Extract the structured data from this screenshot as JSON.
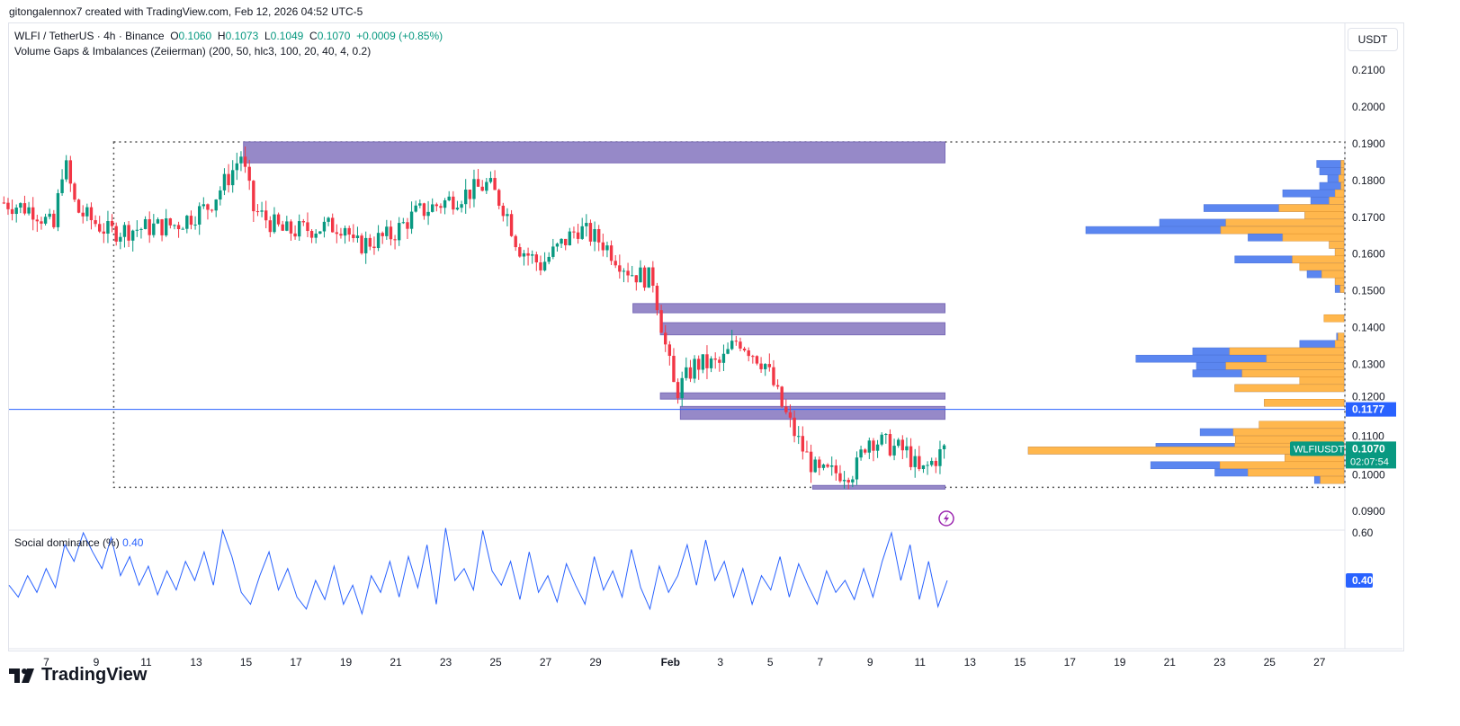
{
  "credit": "gitongalennox7 created with TradingView.com, Feb 12, 2026 04:52 UTC-5",
  "symbol": {
    "name": "WLFI / TetherUS · 4h · Binance",
    "o_label": "O",
    "o": "0.1060",
    "h_label": "H",
    "h": "0.1073",
    "l_label": "L",
    "l": "0.1049",
    "c_label": "C",
    "c": "0.1070",
    "change": "+0.0009 (+0.85%)"
  },
  "indicator": "Volume Gaps & Imbalances (Zeiierman) (200, 50, hlc3, 100, 20, 40, 4, 0.2)",
  "currency_button": "USDT",
  "social": {
    "label": "Social dominance (%)",
    "value": "0.40",
    "axis_labels": [
      "0.60",
      "0.40"
    ]
  },
  "brand": "TradingView",
  "colors": {
    "up": "#089981",
    "down": "#f23645",
    "zone": "#9689c8",
    "vp_blue": "#5b86f0",
    "vp_orange": "#ffb74d",
    "hline": "#2962ff"
  },
  "chart_data": {
    "type": "candlestick",
    "title": "WLFI / TetherUS 4h",
    "ylim": [
      0.085,
      0.215
    ],
    "y_ticks": [
      "0.2100",
      "0.2000",
      "0.1900",
      "0.1800",
      "0.1700",
      "0.1600",
      "0.1500",
      "0.1400",
      "0.1300",
      "0.1200",
      "0.1100",
      "0.1000",
      "0.0900"
    ],
    "x_ticks": [
      {
        "t": 7,
        "label": "7"
      },
      {
        "t": 9,
        "label": "9"
      },
      {
        "t": 11,
        "label": "11"
      },
      {
        "t": 13,
        "label": "13"
      },
      {
        "t": 15,
        "label": "15"
      },
      {
        "t": 17,
        "label": "17"
      },
      {
        "t": 19,
        "label": "19"
      },
      {
        "t": 21,
        "label": "21"
      },
      {
        "t": 23,
        "label": "23"
      },
      {
        "t": 25,
        "label": "25"
      },
      {
        "t": 27,
        "label": "27"
      },
      {
        "t": 29,
        "label": "29"
      },
      {
        "t": 32,
        "label": "Feb"
      },
      {
        "t": 34,
        "label": "3"
      },
      {
        "t": 36,
        "label": "5"
      },
      {
        "t": 38,
        "label": "7"
      },
      {
        "t": 40,
        "label": "9"
      },
      {
        "t": 42,
        "label": "11"
      },
      {
        "t": 44,
        "label": "13"
      },
      {
        "t": 46,
        "label": "15"
      },
      {
        "t": 48,
        "label": "17"
      },
      {
        "t": 50,
        "label": "19"
      },
      {
        "t": 52,
        "label": "21"
      },
      {
        "t": 54,
        "label": "23"
      },
      {
        "t": 56,
        "label": "25"
      },
      {
        "t": 58,
        "label": "27"
      }
    ],
    "price_path": [
      [
        5.3,
        0.174
      ],
      [
        6.5,
        0.172
      ],
      [
        7.3,
        0.167
      ],
      [
        7.7,
        0.186
      ],
      [
        8.2,
        0.172
      ],
      [
        9.5,
        0.166
      ],
      [
        12.2,
        0.168
      ],
      [
        13.5,
        0.173
      ],
      [
        14.4,
        0.182
      ],
      [
        14.8,
        0.187
      ],
      [
        15.3,
        0.172
      ],
      [
        16.5,
        0.166
      ],
      [
        19,
        0.168
      ],
      [
        19.3,
        0.162
      ],
      [
        20.8,
        0.165
      ],
      [
        21.8,
        0.171
      ],
      [
        22.9,
        0.174
      ],
      [
        24.7,
        0.179
      ],
      [
        25.4,
        0.172
      ],
      [
        25.9,
        0.162
      ],
      [
        26.8,
        0.157
      ],
      [
        28.3,
        0.167
      ],
      [
        29.3,
        0.163
      ],
      [
        30.4,
        0.155
      ],
      [
        31.3,
        0.153
      ],
      [
        31.8,
        0.135
      ],
      [
        32.2,
        0.122
      ],
      [
        33,
        0.13
      ],
      [
        34,
        0.13
      ],
      [
        34.7,
        0.137
      ],
      [
        35.8,
        0.13
      ],
      [
        36.5,
        0.118
      ],
      [
        37.2,
        0.108
      ],
      [
        37.9,
        0.1
      ],
      [
        39.4,
        0.101
      ],
      [
        39.9,
        0.11
      ],
      [
        41.5,
        0.106
      ],
      [
        42,
        0.1
      ],
      [
        43,
        0.107
      ]
    ],
    "last_price": "0.1070",
    "countdown": "02:07:54",
    "last_label": "WLFIUSDT",
    "hline": {
      "price": 0.1177,
      "label": "0.1177"
    },
    "zones": [
      [
        0.1905,
        0.1848,
        14.9
      ],
      [
        0.1465,
        0.144,
        30.5
      ],
      [
        0.1413,
        0.138,
        31.6
      ],
      [
        0.1222,
        0.1205,
        31.6
      ],
      [
        0.1185,
        0.115,
        32.4
      ],
      [
        0.097,
        0.096,
        37.7
      ]
    ],
    "zone_end": 43,
    "range_box": {
      "top": 0.1905,
      "bottom": 0.0965,
      "start": 9.7
    },
    "volume_profile": [
      [
        0.1845,
        37,
        4
      ],
      [
        0.1825,
        33,
        4
      ],
      [
        0.1805,
        22,
        7
      ],
      [
        0.1785,
        33,
        4
      ],
      [
        0.1765,
        83,
        12
      ],
      [
        0.1745,
        45,
        20
      ],
      [
        0.1725,
        190,
        88
      ],
      [
        0.1705,
        53,
        53
      ],
      [
        0.1685,
        250,
        160
      ],
      [
        0.1665,
        350,
        167
      ],
      [
        0.1645,
        130,
        83
      ],
      [
        0.1625,
        20,
        20
      ],
      [
        0.1605,
        12,
        12
      ],
      [
        0.1585,
        148,
        70
      ],
      [
        0.1565,
        60,
        60
      ],
      [
        0.1545,
        50,
        30
      ],
      [
        0.1525,
        12,
        12
      ],
      [
        0.1505,
        12,
        5
      ],
      [
        0.1425,
        27,
        27
      ],
      [
        0.1375,
        10,
        8
      ],
      [
        0.1355,
        60,
        12
      ],
      [
        0.1335,
        205,
        155
      ],
      [
        0.1315,
        282,
        105
      ],
      [
        0.1295,
        200,
        160
      ],
      [
        0.1275,
        205,
        138
      ],
      [
        0.1255,
        60,
        60
      ],
      [
        0.1235,
        148,
        148
      ],
      [
        0.1195,
        108,
        108
      ],
      [
        0.1135,
        115,
        115
      ],
      [
        0.1115,
        195,
        150
      ],
      [
        0.1095,
        147,
        147
      ],
      [
        0.1075,
        255,
        148
      ],
      [
        0.1065,
        428,
        428
      ],
      [
        0.1045,
        80,
        80
      ],
      [
        0.1025,
        262,
        168
      ],
      [
        0.1005,
        175,
        130
      ],
      [
        0.0985,
        40,
        32
      ]
    ],
    "social_dominance": [
      0.38,
      0.33,
      0.42,
      0.35,
      0.45,
      0.37,
      0.55,
      0.48,
      0.6,
      0.52,
      0.45,
      0.58,
      0.42,
      0.5,
      0.38,
      0.46,
      0.34,
      0.44,
      0.36,
      0.48,
      0.4,
      0.52,
      0.38,
      0.61,
      0.5,
      0.35,
      0.3,
      0.42,
      0.52,
      0.36,
      0.45,
      0.33,
      0.28,
      0.4,
      0.32,
      0.46,
      0.3,
      0.38,
      0.26,
      0.42,
      0.35,
      0.48,
      0.33,
      0.5,
      0.37,
      0.55,
      0.3,
      0.62,
      0.4,
      0.45,
      0.36,
      0.61,
      0.44,
      0.38,
      0.48,
      0.32,
      0.52,
      0.35,
      0.42,
      0.31,
      0.47,
      0.38,
      0.3,
      0.5,
      0.36,
      0.44,
      0.33,
      0.53,
      0.37,
      0.28,
      0.46,
      0.35,
      0.42,
      0.55,
      0.38,
      0.57,
      0.4,
      0.48,
      0.33,
      0.45,
      0.3,
      0.42,
      0.36,
      0.5,
      0.33,
      0.47,
      0.38,
      0.3,
      0.44,
      0.35,
      0.4,
      0.32,
      0.45,
      0.33,
      0.48,
      0.6,
      0.4,
      0.55,
      0.32,
      0.48,
      0.29,
      0.4
    ]
  }
}
